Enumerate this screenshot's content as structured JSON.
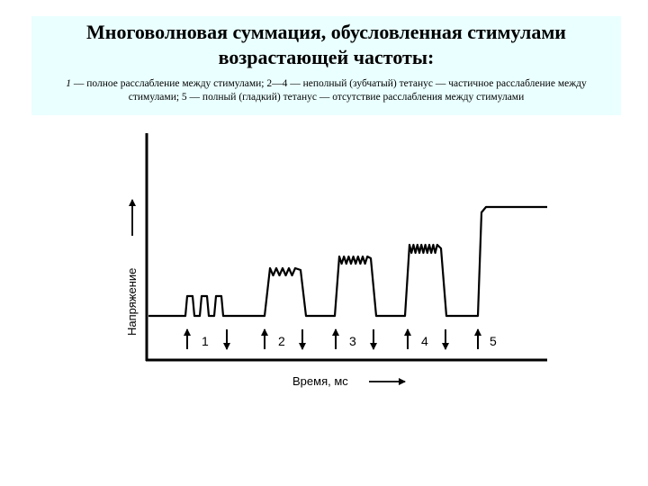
{
  "header": {
    "title": "Многоволновая суммация, обусловленная стимулами возрастающей частоты:",
    "caption_num": "1",
    "caption_rest": " — полное расслабление между стимулами; 2—4 — неполный (зубчатый) тетанус — частичное расслабление между стимулами; 5 — полный (гладкий) тетанус — отсутствие расслабления между стимулами"
  },
  "diagram": {
    "y_axis_label": "Напряжение",
    "x_axis_label": "Время, мс",
    "stimuli": [
      {
        "label": "1"
      },
      {
        "label": "2"
      },
      {
        "label": "3"
      },
      {
        "label": "4"
      },
      {
        "label": "5"
      }
    ],
    "line_color": "#000000"
  }
}
